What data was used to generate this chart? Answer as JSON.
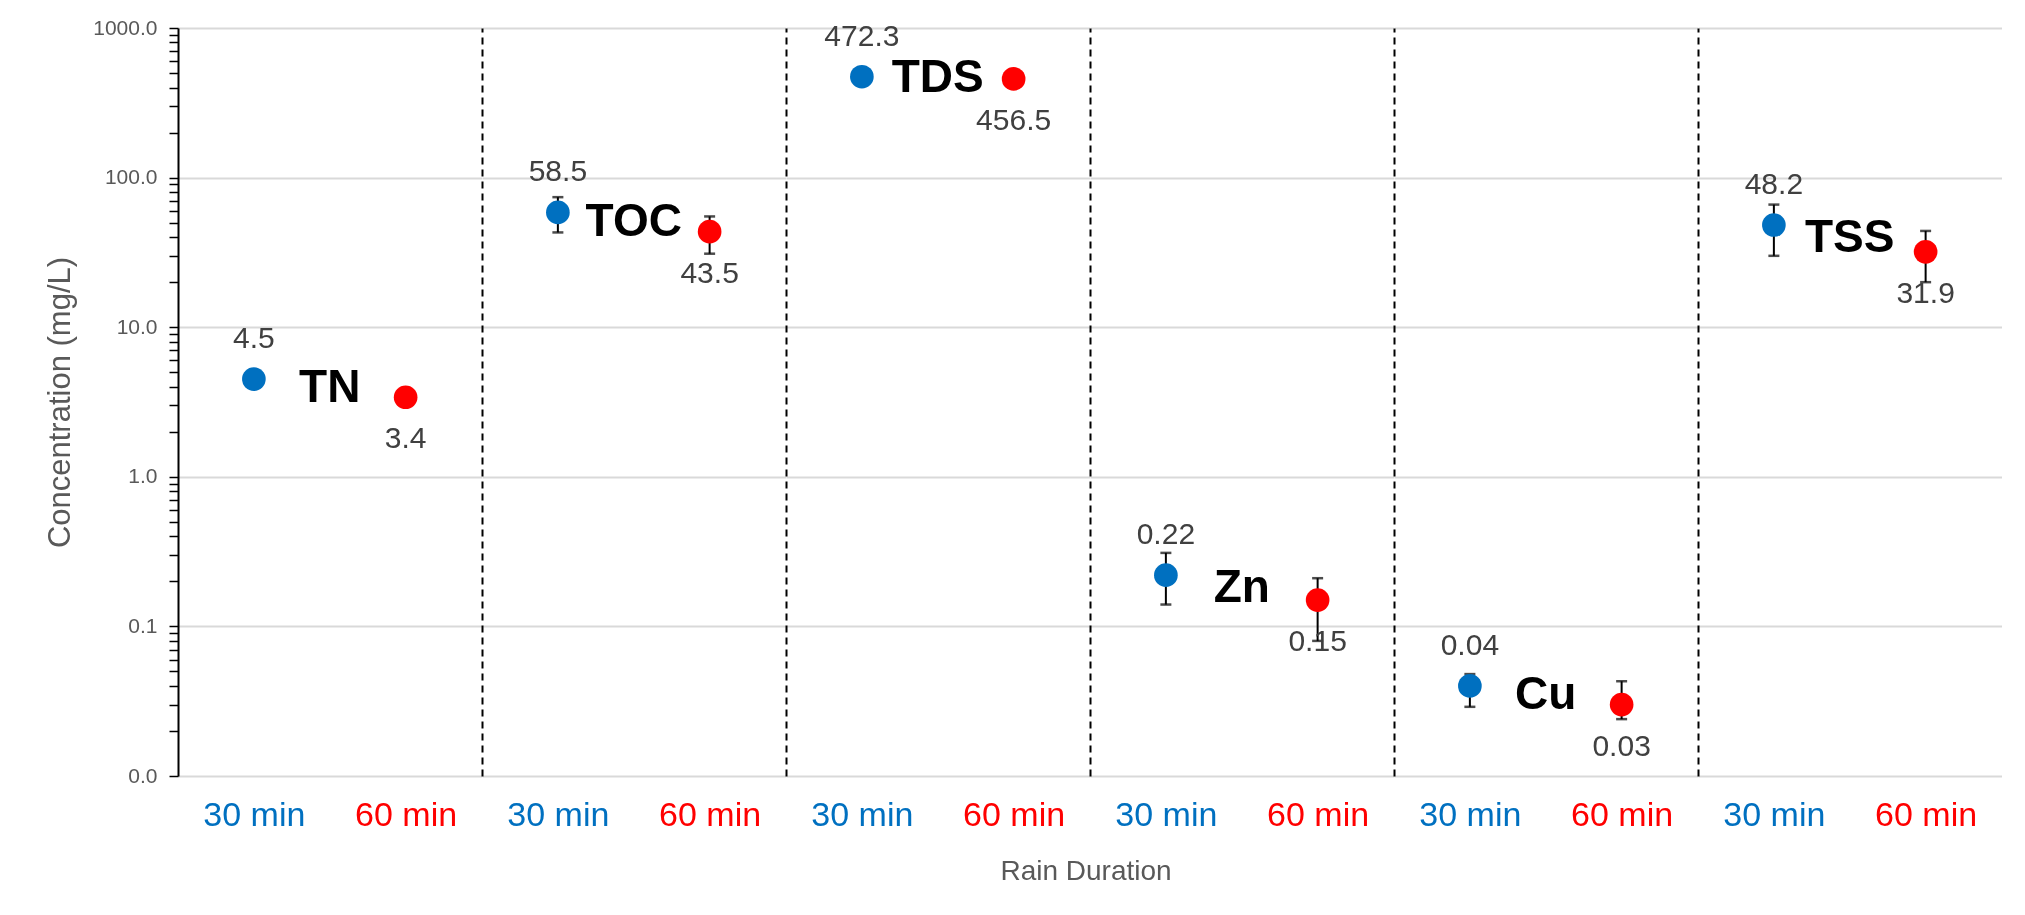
{
  "chart_data": [
    {
      "type": "scatter",
      "categories": [
        "30 min",
        "60 min"
      ],
      "values": [
        4.5,
        3.4
      ],
      "colors": [
        "#0070c0",
        "#ff0000"
      ],
      "data_labels": true,
      "marker": "circle",
      "log": true,
      "grid": "y",
      "ylabel": "Concentration (mg/L)",
      "ylim": [
        0.01,
        1000
      ],
      "yticks": [
        {
          "value": 0.01,
          "label": "0.0"
        },
        {
          "value": 0.02,
          "label": null
        },
        {
          "value": 0.03,
          "label": null
        },
        {
          "value": 0.04,
          "label": null
        },
        {
          "value": 0.05,
          "label": null
        },
        {
          "value": 0.06,
          "label": null
        },
        {
          "value": 0.07,
          "label": null
        },
        {
          "value": 0.08,
          "label": null
        },
        {
          "value": 0.09,
          "label": null
        },
        {
          "value": 0.1,
          "label": "0.1"
        },
        {
          "value": 0.2,
          "label": null
        },
        {
          "value": 0.3,
          "label": null
        },
        {
          "value": 0.4,
          "label": null
        },
        {
          "value": 0.5,
          "label": null
        },
        {
          "value": 0.6,
          "label": null
        },
        {
          "value": 0.7,
          "label": null
        },
        {
          "value": 0.8,
          "label": null
        },
        {
          "value": 0.9,
          "label": null
        },
        {
          "value": 1,
          "label": "1.0"
        },
        {
          "value": 2,
          "label": null
        },
        {
          "value": 3,
          "label": null
        },
        {
          "value": 4,
          "label": null
        },
        {
          "value": 5,
          "label": null
        },
        {
          "value": 6,
          "label": null
        },
        {
          "value": 7,
          "label": null
        },
        {
          "value": 8,
          "label": null
        },
        {
          "value": 9,
          "label": null
        },
        {
          "value": 10,
          "label": "10.0"
        },
        {
          "value": 20,
          "label": null
        },
        {
          "value": 30,
          "label": null
        },
        {
          "value": 40,
          "label": null
        },
        {
          "value": 50,
          "label": null
        },
        {
          "value": 60,
          "label": null
        },
        {
          "value": 70,
          "label": null
        },
        {
          "value": 80,
          "label": null
        },
        {
          "value": 90,
          "label": null
        },
        {
          "value": 100,
          "label": "100.0"
        },
        {
          "value": 200,
          "label": null
        },
        {
          "value": 300,
          "label": null
        },
        {
          "value": 400,
          "label": null
        },
        {
          "value": 500,
          "label": null
        },
        {
          "value": 600,
          "label": null
        },
        {
          "value": 700,
          "label": null
        },
        {
          "value": 800,
          "label": null
        },
        {
          "value": 900,
          "label": null
        },
        {
          "value": 1000,
          "label": "1000.0"
        }
      ],
      "annotations": [
        "TN"
      ]
    },
    {
      "type": "scatter",
      "categories": [
        "30 min",
        "60 min"
      ],
      "values": [
        58.5,
        43.5
      ],
      "colors": [
        "#0070c0",
        "#ff0000"
      ],
      "errors": [
        [
          43,
          74
        ],
        [
          31,
          55
        ]
      ],
      "data_labels": true,
      "marker": "circle",
      "log": true,
      "grid": "y",
      "tick_labels": "x",
      "ylim": [
        0.01,
        1000
      ],
      "annotations": [
        "TOC"
      ]
    },
    {
      "type": "scatter",
      "categories": [
        "30 min",
        "60 min"
      ],
      "values": [
        472.3,
        456.5
      ],
      "colors": [
        "#0070c0",
        "#ff0000"
      ],
      "data_labels": true,
      "marker": "circle",
      "log": true,
      "grid": "y",
      "tick_labels": "x",
      "xlabel": "Rain Duration",
      "ylim": [
        0.01,
        1000
      ],
      "annotations": [
        "TDS"
      ]
    },
    {
      "type": "scatter",
      "categories": [
        "30 min",
        "60 min"
      ],
      "values": [
        0.22,
        0.15
      ],
      "colors": [
        "#0070c0",
        "#ff0000"
      ],
      "errors": [
        [
          0.14,
          0.31
        ],
        [
          0.08,
          0.21
        ]
      ],
      "data_labels": true,
      "marker": "circle",
      "log": true,
      "grid": "y",
      "tick_labels": "x",
      "ylim": [
        0.01,
        1000
      ],
      "annotations": [
        "Zn"
      ]
    },
    {
      "type": "scatter",
      "categories": [
        "30 min",
        "60 min"
      ],
      "values": [
        0.04,
        0.03
      ],
      "colors": [
        "#0070c0",
        "#ff0000"
      ],
      "errors": [
        [
          0.029,
          0.048
        ],
        [
          0.024,
          0.043
        ]
      ],
      "data_labels": true,
      "marker": "circle",
      "log": true,
      "grid": "y",
      "tick_labels": "x",
      "ylim": [
        0.01,
        1000
      ],
      "annotations": [
        "Cu"
      ]
    },
    {
      "type": "scatter",
      "categories": [
        "30 min",
        "60 min"
      ],
      "values": [
        48.2,
        31.9
      ],
      "colors": [
        "#0070c0",
        "#ff0000"
      ],
      "errors": [
        [
          30,
          66
        ],
        [
          20,
          44
        ]
      ],
      "data_labels": true,
      "marker": "circle",
      "log": true,
      "grid": "y",
      "tick_labels": "x",
      "ylim": [
        0.01,
        1000
      ],
      "annotations": [
        "TSS"
      ]
    }
  ]
}
